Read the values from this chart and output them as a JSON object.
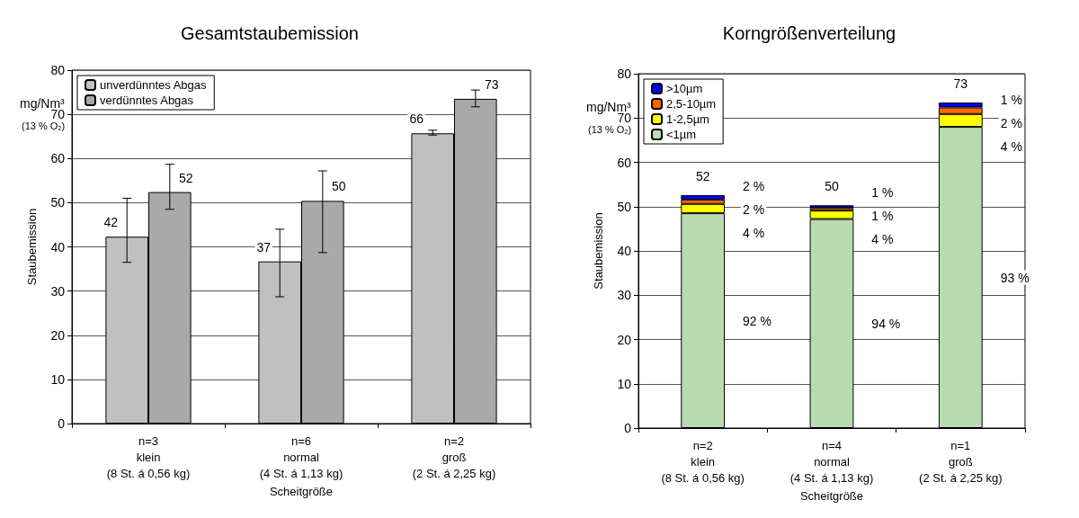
{
  "chart_data": [
    {
      "type": "bar",
      "title": "Gesamtstaubemission",
      "xlabel": "Scheitgröße",
      "ylabel": "Staubemission",
      "annotations": [
        "mg/Nm³",
        "(13 % O₂)"
      ],
      "categories": [
        "n=3\nklein\n(8 St. á 0,56 kg)",
        "n=6\nnormal\n(4 St. á 1,13 kg)",
        "n=2\ngroß\n(2 St. á 2,25 kg)"
      ],
      "series": [
        {
          "name": "unverdünntes Abgas",
          "color": "#c0c0c0",
          "values": [
            42.3,
            36.7,
            65.7
          ],
          "errors": [
            [
              36.5,
              51
            ],
            [
              28.7,
              44
            ],
            [
              65.3,
              66.4
            ]
          ],
          "value_labels": [
            "42",
            "37",
            "66"
          ]
        },
        {
          "name": "verdünntes Abgas",
          "color": "#a9a9a9",
          "values": [
            52.4,
            50.4,
            73.5
          ],
          "errors": [
            [
              48.5,
              58.7
            ],
            [
              38.7,
              57.2
            ],
            [
              71.7,
              75.5
            ]
          ],
          "value_labels": [
            "52",
            "50",
            "73"
          ]
        }
      ],
      "ylim": [
        0,
        80
      ],
      "yticks": [
        0,
        10,
        20,
        30,
        40,
        50,
        60,
        70,
        80
      ],
      "grid": "y",
      "legend": "top left"
    },
    {
      "type": "bar",
      "title": "Korngrößenverteilung",
      "xlabel": "Scheitgröße",
      "ylabel": "Staubemission",
      "annotations": [
        "mg/Nm³",
        "(13 % O₂)",
        "92 %",
        "4 %",
        "2 %",
        "2 %",
        "94 %",
        "4 %",
        "1 %",
        "1 %",
        "93 %",
        "4 %",
        "2 %",
        "1 %"
      ],
      "categories": [
        "n=2\nklein\n(8 St. á 0,56 kg)",
        "n=4\nnormal\n(4 St. á 1,13 kg)",
        "n=1\ngroß\n(2 St. á 2,25 kg)"
      ],
      "stacked": true,
      "series": [
        {
          "name": "<1µm",
          "color": "#b8dcb0",
          "values": [
            48.5,
            47.2,
            68.0
          ]
        },
        {
          "name": "1-2,5µm",
          "color": "#ffff00",
          "values": [
            2.1,
            1.9,
            2.9
          ]
        },
        {
          "name": "2,5-10µm",
          "color": "#ff6600",
          "values": [
            1.0,
            0.6,
            1.5
          ]
        },
        {
          "name": ">10µm",
          "color": "#0000ff",
          "values": [
            1.0,
            0.6,
            1.1
          ]
        }
      ],
      "totals": [
        "52",
        "50",
        "73"
      ],
      "ylim": [
        0,
        80
      ],
      "yticks": [
        0,
        10,
        20,
        30,
        40,
        50,
        60,
        70,
        80
      ],
      "grid": "y",
      "legend": "top left"
    }
  ]
}
